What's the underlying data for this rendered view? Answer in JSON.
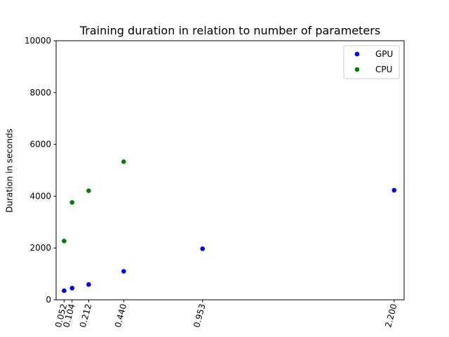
{
  "chart_data": {
    "type": "scatter",
    "title": "Training duration in relation to number of parameters",
    "xlabel": "",
    "ylabel": "Duration in seconds",
    "xlim": [
      0.0,
      2.265
    ],
    "ylim": [
      0,
      10000
    ],
    "x_ticks": [
      0.052,
      0.104,
      0.212,
      0.44,
      0.953,
      2.2
    ],
    "x_tick_labels": [
      "0.052",
      "0.104",
      "0.212",
      "0.440",
      "0.953",
      "2.200"
    ],
    "y_ticks": [
      0,
      2000,
      4000,
      6000,
      8000,
      10000
    ],
    "y_tick_labels": [
      "0",
      "2000",
      "4000",
      "6000",
      "8000",
      "10000"
    ],
    "x_tick_rotation_deg": 75,
    "grid": false,
    "legend_position": "top-right",
    "series": [
      {
        "name": "GPU",
        "color": "#0000ff",
        "points": [
          {
            "x": 0.052,
            "y": 350
          },
          {
            "x": 0.104,
            "y": 450
          },
          {
            "x": 0.212,
            "y": 590
          },
          {
            "x": 0.44,
            "y": 1100
          },
          {
            "x": 0.953,
            "y": 1970
          },
          {
            "x": 2.2,
            "y": 4230
          }
        ]
      },
      {
        "name": "CPU",
        "color": "#008000",
        "points": [
          {
            "x": 0.052,
            "y": 2270
          },
          {
            "x": 0.104,
            "y": 3760
          },
          {
            "x": 0.212,
            "y": 4210
          },
          {
            "x": 0.44,
            "y": 5330
          }
        ]
      }
    ]
  }
}
